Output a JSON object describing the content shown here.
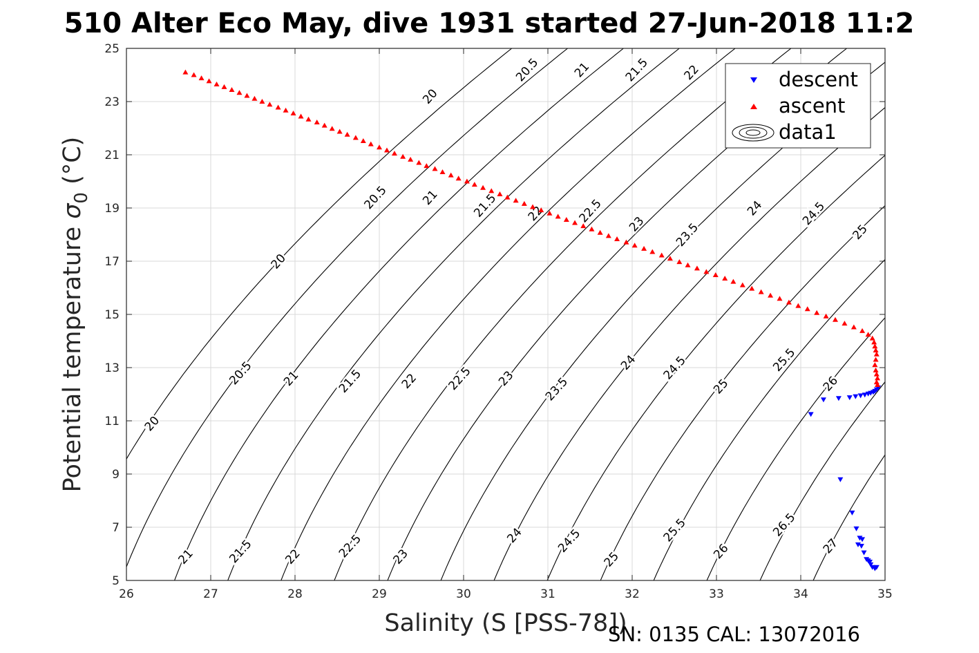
{
  "chart_data": {
    "type": "scatter",
    "title": "510 Alter Eco May, dive 1931 started 27-Jun-2018 11:2",
    "xlabel": "Salinity (S [PSS-78])",
    "ylabel": "Potential temperature σ0 (°C)",
    "ylabel_main": "Potential temperature ",
    "ylabel_sym": "σ",
    "ylabel_sub": "0",
    "ylabel_unit": " (°C)",
    "footer": "SN: 0135  CAL: 13072016",
    "xlim": [
      26,
      35
    ],
    "ylim": [
      5,
      25
    ],
    "xticks": [
      "26",
      "27",
      "28",
      "29",
      "30",
      "31",
      "32",
      "33",
      "34",
      "35"
    ],
    "yticks": [
      "5",
      "7",
      "9",
      "11",
      "13",
      "15",
      "17",
      "19",
      "21",
      "23",
      "25"
    ],
    "grid": true,
    "legend": {
      "position": "top-right",
      "entries": [
        "descent",
        "ascent",
        "data1"
      ]
    },
    "colors": {
      "descent": "#0000ff",
      "ascent": "#ff0000",
      "contour": "#000000",
      "grid": "#d9d9d9"
    },
    "contour_levels": [
      20,
      20.5,
      21,
      21.5,
      22,
      22.5,
      23,
      23.5,
      24,
      24.5,
      25,
      25.5,
      26,
      26.5,
      27
    ],
    "contour_labels": [
      {
        "text": "20",
        "s": 26.3,
        "t": 10.9
      },
      {
        "text": "20.5",
        "s": 27.35,
        "t": 12.8
      },
      {
        "text": "21",
        "s": 27.95,
        "t": 12.6
      },
      {
        "text": "21.5",
        "s": 28.65,
        "t": 12.5
      },
      {
        "text": "22",
        "s": 29.35,
        "t": 12.5
      },
      {
        "text": "22.5",
        "s": 29.95,
        "t": 12.6
      },
      {
        "text": "23",
        "s": 30.5,
        "t": 12.6
      },
      {
        "text": "23.5",
        "s": 31.1,
        "t": 12.2
      },
      {
        "text": "24",
        "s": 31.95,
        "t": 13.2
      },
      {
        "text": "24.5",
        "s": 32.5,
        "t": 13.0
      },
      {
        "text": "25",
        "s": 33.05,
        "t": 12.3
      },
      {
        "text": "25.5",
        "s": 33.8,
        "t": 13.3
      },
      {
        "text": "26",
        "s": 34.35,
        "t": 12.4
      },
      {
        "text": "21",
        "s": 26.7,
        "t": 5.9
      },
      {
        "text": "21.5",
        "s": 27.35,
        "t": 6.1
      },
      {
        "text": "22",
        "s": 27.97,
        "t": 5.9
      },
      {
        "text": "22.5",
        "s": 28.65,
        "t": 6.3
      },
      {
        "text": "23",
        "s": 29.25,
        "t": 5.9
      },
      {
        "text": "24",
        "s": 30.6,
        "t": 6.7
      },
      {
        "text": "24.5",
        "s": 31.25,
        "t": 6.5
      },
      {
        "text": "25",
        "s": 31.75,
        "t": 5.8
      },
      {
        "text": "25.5",
        "s": 32.5,
        "t": 6.9
      },
      {
        "text": "26",
        "s": 33.05,
        "t": 6.1
      },
      {
        "text": "26.5",
        "s": 33.8,
        "t": 7.1
      },
      {
        "text": "27",
        "s": 34.35,
        "t": 6.3
      },
      {
        "text": "20",
        "s": 27.8,
        "t": 17.0
      },
      {
        "text": "20.5",
        "s": 28.95,
        "t": 19.4
      },
      {
        "text": "21",
        "s": 29.6,
        "t": 19.4
      },
      {
        "text": "21.5",
        "s": 30.25,
        "t": 19.1
      },
      {
        "text": "22",
        "s": 30.85,
        "t": 18.8
      },
      {
        "text": "22.5",
        "s": 31.5,
        "t": 18.9
      },
      {
        "text": "23",
        "s": 32.05,
        "t": 18.4
      },
      {
        "text": "23.5",
        "s": 32.65,
        "t": 18.0
      },
      {
        "text": "24",
        "s": 33.45,
        "t": 19.0
      },
      {
        "text": "24.5",
        "s": 34.15,
        "t": 18.8
      },
      {
        "text": "25",
        "s": 34.7,
        "t": 18.1
      },
      {
        "text": "20",
        "s": 29.6,
        "t": 23.2
      },
      {
        "text": "20.5",
        "s": 30.75,
        "t": 24.2
      },
      {
        "text": "21",
        "s": 31.4,
        "t": 24.2
      },
      {
        "text": "21.5",
        "s": 32.05,
        "t": 24.2
      },
      {
        "text": "22",
        "s": 32.7,
        "t": 24.1
      }
    ],
    "series": [
      {
        "name": "descent",
        "marker": "triangle-down",
        "points": [
          [
            34.12,
            11.25
          ],
          [
            34.27,
            11.8
          ],
          [
            34.45,
            11.85
          ],
          [
            34.58,
            11.88
          ],
          [
            34.65,
            11.92
          ],
          [
            34.71,
            11.95
          ],
          [
            34.76,
            11.98
          ],
          [
            34.8,
            12.02
          ],
          [
            34.83,
            12.05
          ],
          [
            34.86,
            12.08
          ],
          [
            34.88,
            12.12
          ],
          [
            34.9,
            12.18
          ],
          [
            34.92,
            12.25
          ],
          [
            34.47,
            8.8
          ],
          [
            34.61,
            7.55
          ],
          [
            34.66,
            6.95
          ],
          [
            34.7,
            6.6
          ],
          [
            34.73,
            6.55
          ],
          [
            34.68,
            6.35
          ],
          [
            34.72,
            6.3
          ],
          [
            34.75,
            6.05
          ],
          [
            34.78,
            5.8
          ],
          [
            34.8,
            5.75
          ],
          [
            34.82,
            5.7
          ],
          [
            34.83,
            5.6
          ],
          [
            34.85,
            5.5
          ],
          [
            34.88,
            5.45
          ],
          [
            34.9,
            5.5
          ]
        ]
      },
      {
        "name": "ascent",
        "marker": "triangle-up",
        "points": [
          [
            26.7,
            24.1
          ],
          [
            26.8,
            24.0
          ],
          [
            26.89,
            23.88
          ],
          [
            26.98,
            23.77
          ],
          [
            27.07,
            23.65
          ],
          [
            27.16,
            23.55
          ],
          [
            27.25,
            23.44
          ],
          [
            27.34,
            23.33
          ],
          [
            27.43,
            23.22
          ],
          [
            27.52,
            23.11
          ],
          [
            27.61,
            23.0
          ],
          [
            27.7,
            22.89
          ],
          [
            27.8,
            22.78
          ],
          [
            27.89,
            22.67
          ],
          [
            27.98,
            22.56
          ],
          [
            28.07,
            22.44
          ],
          [
            28.16,
            22.33
          ],
          [
            28.26,
            22.22
          ],
          [
            28.35,
            22.1
          ],
          [
            28.44,
            21.98
          ],
          [
            28.53,
            21.87
          ],
          [
            28.62,
            21.76
          ],
          [
            28.72,
            21.64
          ],
          [
            28.81,
            21.52
          ],
          [
            28.9,
            21.4
          ],
          [
            29.0,
            21.28
          ],
          [
            29.09,
            21.17
          ],
          [
            29.18,
            21.05
          ],
          [
            29.28,
            20.93
          ],
          [
            29.37,
            20.82
          ],
          [
            29.47,
            20.7
          ],
          [
            29.56,
            20.58
          ],
          [
            29.66,
            20.47
          ],
          [
            29.75,
            20.35
          ],
          [
            29.85,
            20.23
          ],
          [
            29.94,
            20.11
          ],
          [
            30.04,
            20.0
          ],
          [
            30.13,
            19.88
          ],
          [
            30.23,
            19.76
          ],
          [
            30.33,
            19.64
          ],
          [
            30.43,
            19.52
          ],
          [
            30.52,
            19.4
          ],
          [
            30.62,
            19.28
          ],
          [
            30.72,
            19.16
          ],
          [
            30.82,
            19.04
          ],
          [
            30.92,
            18.92
          ],
          [
            31.02,
            18.8
          ],
          [
            31.12,
            18.68
          ],
          [
            31.22,
            18.56
          ],
          [
            31.32,
            18.44
          ],
          [
            31.42,
            18.32
          ],
          [
            31.52,
            18.2
          ],
          [
            31.62,
            18.07
          ],
          [
            31.72,
            17.95
          ],
          [
            31.82,
            17.83
          ],
          [
            31.93,
            17.71
          ],
          [
            32.03,
            17.59
          ],
          [
            32.14,
            17.47
          ],
          [
            32.24,
            17.35
          ],
          [
            32.35,
            17.22
          ],
          [
            32.45,
            17.1
          ],
          [
            32.56,
            16.97
          ],
          [
            32.66,
            16.85
          ],
          [
            32.77,
            16.73
          ],
          [
            32.88,
            16.6
          ],
          [
            32.99,
            16.48
          ],
          [
            33.1,
            16.35
          ],
          [
            33.2,
            16.23
          ],
          [
            33.31,
            16.1
          ],
          [
            33.42,
            15.97
          ],
          [
            33.53,
            15.84
          ],
          [
            33.64,
            15.71
          ],
          [
            33.75,
            15.59
          ],
          [
            33.86,
            15.45
          ],
          [
            33.97,
            15.32
          ],
          [
            34.08,
            15.2
          ],
          [
            34.19,
            15.06
          ],
          [
            34.3,
            14.93
          ],
          [
            34.41,
            14.8
          ],
          [
            34.52,
            14.66
          ],
          [
            34.63,
            14.52
          ],
          [
            34.73,
            14.38
          ],
          [
            34.8,
            14.24
          ],
          [
            34.85,
            14.1
          ],
          [
            34.87,
            13.95
          ],
          [
            34.88,
            13.8
          ],
          [
            34.89,
            13.65
          ],
          [
            34.9,
            13.5
          ],
          [
            34.89,
            13.3
          ],
          [
            34.88,
            13.1
          ],
          [
            34.89,
            12.9
          ],
          [
            34.9,
            12.75
          ],
          [
            34.91,
            12.6
          ],
          [
            34.9,
            12.45
          ],
          [
            34.91,
            12.35
          ]
        ]
      }
    ]
  }
}
